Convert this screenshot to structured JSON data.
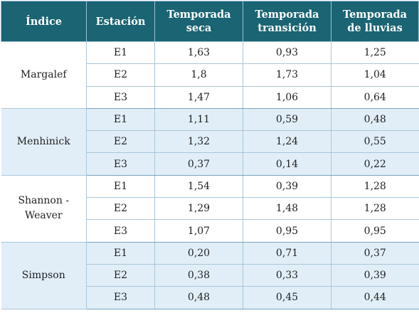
{
  "table": {
    "headers": {
      "indice": "Índice",
      "estacion": "Estación",
      "seca": "Temporada seca",
      "transicion": "Temporada transición",
      "lluvias": "Temporada de lluvias"
    },
    "groups": [
      {
        "indice": "Margalef",
        "rows": [
          {
            "estacion": "E1",
            "seca": "1,63",
            "transicion": "0,93",
            "lluvias": "1,25"
          },
          {
            "estacion": "E2",
            "seca": "1,8",
            "transicion": "1,73",
            "lluvias": "1,04"
          },
          {
            "estacion": "E3",
            "seca": "1,47",
            "transicion": "1,06",
            "lluvias": "0,64"
          }
        ]
      },
      {
        "indice": "Menhinick",
        "rows": [
          {
            "estacion": "E1",
            "seca": "1,11",
            "transicion": "0,59",
            "lluvias": "0,48"
          },
          {
            "estacion": "E2",
            "seca": "1,32",
            "transicion": "1,24",
            "lluvias": "0,55"
          },
          {
            "estacion": "E3",
            "seca": "0,37",
            "transicion": "0,14",
            "lluvias": "0,22"
          }
        ]
      },
      {
        "indice": "Shannon - Weaver",
        "rows": [
          {
            "estacion": "E1",
            "seca": "1,54",
            "transicion": "0,39",
            "lluvias": "1,28"
          },
          {
            "estacion": "E2",
            "seca": "1,29",
            "transicion": "1,48",
            "lluvias": "1,28"
          },
          {
            "estacion": "E3",
            "seca": "1,07",
            "transicion": "0,95",
            "lluvias": "0,95"
          }
        ]
      },
      {
        "indice": "Simpson",
        "rows": [
          {
            "estacion": "E1",
            "seca": "0,20",
            "transicion": "0,71",
            "lluvias": "0,37"
          },
          {
            "estacion": "E2",
            "seca": "0,38",
            "transicion": "0,33",
            "lluvias": "0,39"
          },
          {
            "estacion": "E3",
            "seca": "0,48",
            "transicion": "0,45",
            "lluvias": "0,44"
          }
        ]
      }
    ]
  }
}
